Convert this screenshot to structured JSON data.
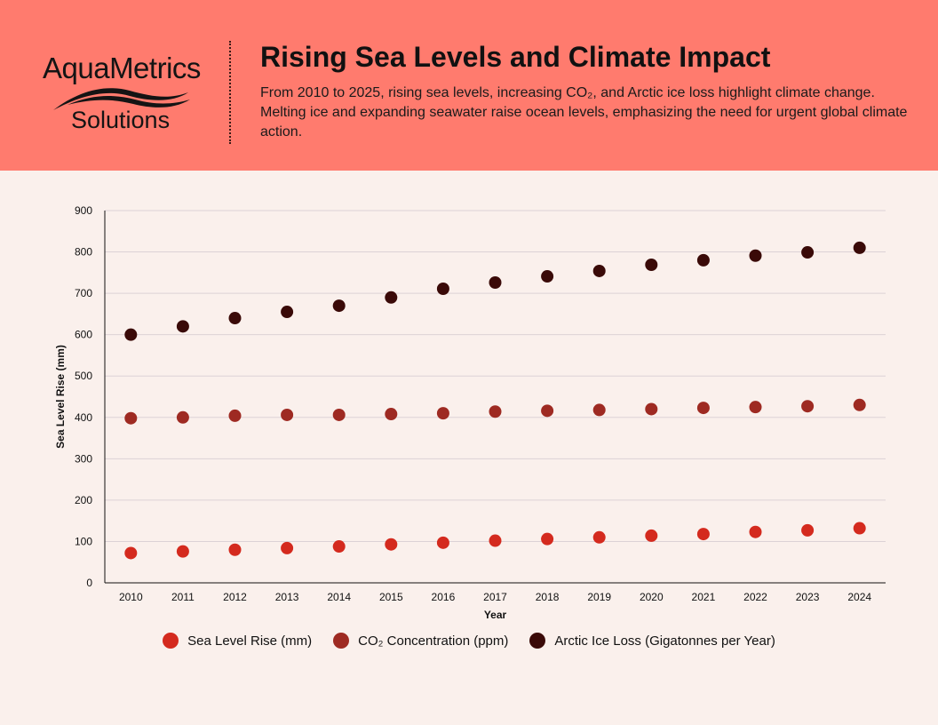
{
  "header": {
    "logo_top": "AquaMetrics",
    "logo_bottom": "Solutions",
    "title": "Rising Sea Levels and Climate Impact",
    "subtitle": "From 2010 to 2025, rising sea levels, increasing CO₂, and Arctic ice loss highlight climate change. Melting ice and expanding seawater raise ocean levels, emphasizing the need for urgent global climate action."
  },
  "colors": {
    "header_bg": "#ff7b6e",
    "page_bg": "#faf0ec",
    "sea_level": "#d42a1e",
    "co2": "#9e2a22",
    "ice_loss": "#3a0a08"
  },
  "chart_data": {
    "type": "scatter",
    "xlabel": "Year",
    "ylabel": "Sea Level Rise (mm)",
    "ylim": [
      0,
      900
    ],
    "yticks": [
      0,
      100,
      200,
      300,
      400,
      500,
      600,
      700,
      800,
      900
    ],
    "grid": "horizontal",
    "legend_position": "bottom",
    "categories": [
      "2010",
      "2011",
      "2012",
      "2013",
      "2014",
      "2015",
      "2016",
      "2017",
      "2018",
      "2019",
      "2020",
      "2021",
      "2022",
      "2023",
      "2024"
    ],
    "series": [
      {
        "name": "Sea Level Rise (mm)",
        "color": "#d42a1e",
        "values": [
          72,
          76,
          80,
          84,
          88,
          93,
          97,
          102,
          106,
          110,
          114,
          118,
          123,
          127,
          132
        ]
      },
      {
        "name": "CO₂ Concentration (ppm)",
        "color": "#9e2a22",
        "values": [
          398,
          400,
          404,
          406,
          406,
          408,
          410,
          414,
          416,
          418,
          420,
          423,
          425,
          427,
          430
        ]
      },
      {
        "name": "Arctic Ice Loss (Gigatonnes per Year)",
        "color": "#3a0a08",
        "values": [
          600,
          620,
          640,
          655,
          670,
          690,
          711,
          726,
          741,
          754,
          769,
          780,
          791,
          799,
          810
        ]
      }
    ]
  }
}
